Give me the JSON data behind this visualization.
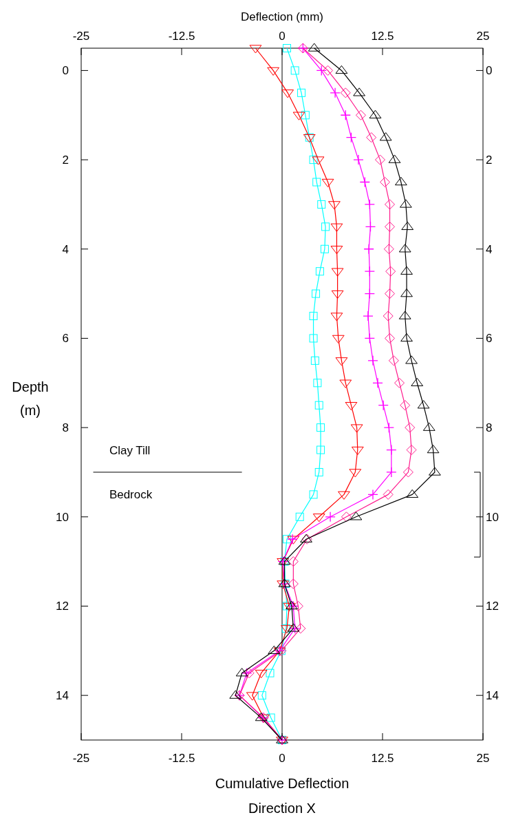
{
  "chart_data": {
    "type": "line",
    "xlabel": "Cumulative Deflection\nDirection  X",
    "x2label": "Deflection (mm)",
    "ylabel": "Depth\n(m)",
    "xlim": [
      -25,
      25
    ],
    "xticks": [
      -25,
      -12.5,
      0,
      12.5,
      25
    ],
    "x2lim": [
      -25,
      25
    ],
    "x2ticks": [
      -25,
      -12.5,
      0,
      12.5,
      25
    ],
    "ylim": [
      15,
      -0.5
    ],
    "yticks": [
      0,
      2,
      4,
      6,
      8,
      10,
      12,
      14
    ],
    "y2lim": [
      15,
      -0.5
    ],
    "y2ticks": [
      0,
      2,
      4,
      6,
      8,
      10,
      12,
      14
    ],
    "orientation": "horizontal",
    "grid": false,
    "x": [
      -0.5,
      0,
      0.5,
      1,
      1.5,
      2,
      2.5,
      3,
      3.5,
      4,
      4.5,
      5,
      5.5,
      6,
      6.5,
      7,
      7.5,
      8,
      8.5,
      9,
      9.5,
      10,
      10.5,
      11,
      11.5,
      12,
      12.5,
      13,
      13.5,
      14,
      14.5,
      15
    ],
    "series": [
      {
        "color": "#00ffff",
        "marker": "square",
        "values": [
          0.6,
          1.6,
          2.4,
          2.9,
          3.4,
          3.9,
          4.3,
          4.9,
          5.4,
          5.3,
          4.7,
          4.2,
          3.9,
          3.9,
          4.1,
          4.4,
          4.6,
          4.8,
          4.8,
          4.6,
          3.9,
          2.2,
          0.6,
          0.3,
          0.4,
          0.6,
          0.5,
          -0.1,
          -1.5,
          -2.5,
          -1.4,
          0
        ]
      },
      {
        "color": "#ff0000",
        "marker": "triangle-down",
        "values": [
          -3.3,
          -1.1,
          0.7,
          2.1,
          3.4,
          4.5,
          5.7,
          6.5,
          6.8,
          6.8,
          6.9,
          6.9,
          6.8,
          7.0,
          7.4,
          7.9,
          8.6,
          9.3,
          9.4,
          9.1,
          7.7,
          4.6,
          1.4,
          0.1,
          0.1,
          0.9,
          0.6,
          -0.3,
          -2.6,
          -3.7,
          -2.3,
          0
        ]
      },
      {
        "color": "#ff00ff",
        "marker": "cross",
        "values": [
          2.6,
          4.9,
          6.6,
          7.9,
          8.6,
          9.5,
          10.3,
          10.9,
          11.0,
          10.8,
          10.9,
          10.9,
          10.7,
          10.9,
          11.3,
          11.9,
          12.6,
          13.3,
          13.6,
          13.6,
          11.3,
          6.0,
          1.3,
          0.1,
          0.3,
          1.4,
          1.6,
          -0.3,
          -4.4,
          -5.3,
          -2.4,
          0
        ]
      },
      {
        "color": "#ff1a8c",
        "marker": "diamond",
        "values": [
          2.6,
          5.7,
          7.9,
          9.8,
          11.1,
          12.2,
          12.8,
          13.4,
          13.4,
          13.3,
          13.5,
          13.4,
          13.2,
          13.4,
          13.9,
          14.6,
          15.3,
          15.9,
          16.1,
          15.7,
          13.2,
          8.0,
          3.1,
          1.4,
          1.4,
          2.0,
          2.3,
          -0.1,
          -4.1,
          -5.3,
          -2.3,
          0
        ]
      },
      {
        "color": "#000000",
        "marker": "triangle",
        "values": [
          4.0,
          7.4,
          9.6,
          11.6,
          12.9,
          14.0,
          14.8,
          15.4,
          15.6,
          15.3,
          15.5,
          15.5,
          15.3,
          15.5,
          16.1,
          16.8,
          17.6,
          18.3,
          18.8,
          19.0,
          16.2,
          9.2,
          3.0,
          0.3,
          0.3,
          1.2,
          1.4,
          -1.0,
          -5.0,
          -5.8,
          -2.6,
          0
        ]
      }
    ],
    "ref_lines": [
      {
        "axis": "x",
        "value": 0,
        "color": "#000000"
      }
    ],
    "annotations": [
      "Clay Till",
      "Bedrock"
    ]
  }
}
